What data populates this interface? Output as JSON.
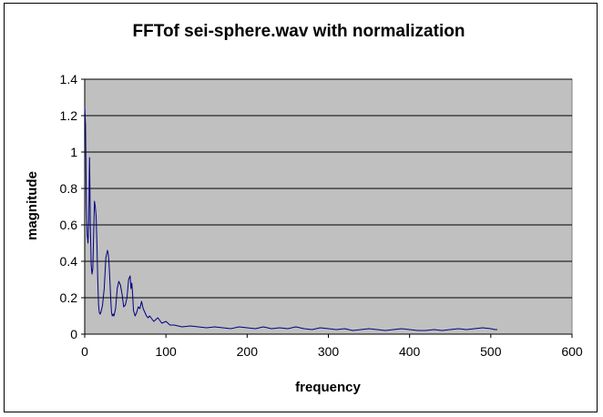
{
  "chart_data": {
    "type": "line",
    "title": "FFTof sei-sphere.wav with normalization",
    "xlabel": "frequency",
    "ylabel": "magnitude",
    "xlim": [
      0,
      600
    ],
    "ylim": [
      0,
      1.4
    ],
    "xticks": [
      0,
      100,
      200,
      300,
      400,
      500,
      600
    ],
    "yticks": [
      0,
      0.2,
      0.4,
      0.6,
      0.8,
      1,
      1.2,
      1.4
    ],
    "ytick_labels": [
      "0",
      "0.2",
      "0.4",
      "0.6",
      "0.8",
      "1",
      "1.2",
      "1.4"
    ],
    "grid": "horizontal",
    "legend": "none",
    "plot_background": "#c0c0c0",
    "line_color": "#000080",
    "series": [
      {
        "x": [
          0,
          1,
          2,
          3,
          4,
          5,
          6,
          7,
          8,
          9,
          10,
          11,
          12,
          13,
          14,
          15,
          16,
          17,
          18,
          19,
          20,
          22,
          24,
          26,
          28,
          29,
          30,
          31,
          32,
          33,
          34,
          35,
          36,
          38,
          40,
          42,
          44,
          46,
          48,
          50,
          52,
          54,
          56,
          57,
          58,
          59,
          60,
          62,
          64,
          66,
          68,
          70,
          72,
          74,
          76,
          78,
          80,
          85,
          90,
          95,
          100,
          105,
          110,
          120,
          130,
          140,
          150,
          160,
          170,
          180,
          190,
          200,
          210,
          220,
          230,
          240,
          250,
          260,
          270,
          280,
          290,
          300,
          310,
          320,
          330,
          340,
          350,
          360,
          370,
          380,
          390,
          400,
          410,
          420,
          430,
          440,
          450,
          460,
          470,
          480,
          490,
          500,
          505,
          508
        ],
        "y": [
          1.25,
          1.15,
          0.72,
          0.55,
          0.5,
          0.62,
          0.97,
          0.6,
          0.38,
          0.33,
          0.36,
          0.55,
          0.73,
          0.7,
          0.65,
          0.5,
          0.3,
          0.16,
          0.12,
          0.11,
          0.12,
          0.16,
          0.25,
          0.42,
          0.46,
          0.44,
          0.38,
          0.3,
          0.2,
          0.12,
          0.1,
          0.11,
          0.1,
          0.14,
          0.25,
          0.29,
          0.27,
          0.22,
          0.15,
          0.16,
          0.2,
          0.3,
          0.32,
          0.25,
          0.28,
          0.22,
          0.13,
          0.1,
          0.12,
          0.15,
          0.14,
          0.18,
          0.14,
          0.12,
          0.1,
          0.09,
          0.1,
          0.07,
          0.09,
          0.06,
          0.07,
          0.05,
          0.05,
          0.04,
          0.045,
          0.04,
          0.035,
          0.04,
          0.035,
          0.03,
          0.04,
          0.035,
          0.03,
          0.04,
          0.03,
          0.035,
          0.03,
          0.04,
          0.03,
          0.025,
          0.035,
          0.03,
          0.025,
          0.03,
          0.02,
          0.025,
          0.03,
          0.025,
          0.02,
          0.025,
          0.03,
          0.025,
          0.02,
          0.02,
          0.025,
          0.02,
          0.025,
          0.03,
          0.025,
          0.03,
          0.035,
          0.03,
          0.025,
          0.025
        ]
      }
    ]
  }
}
